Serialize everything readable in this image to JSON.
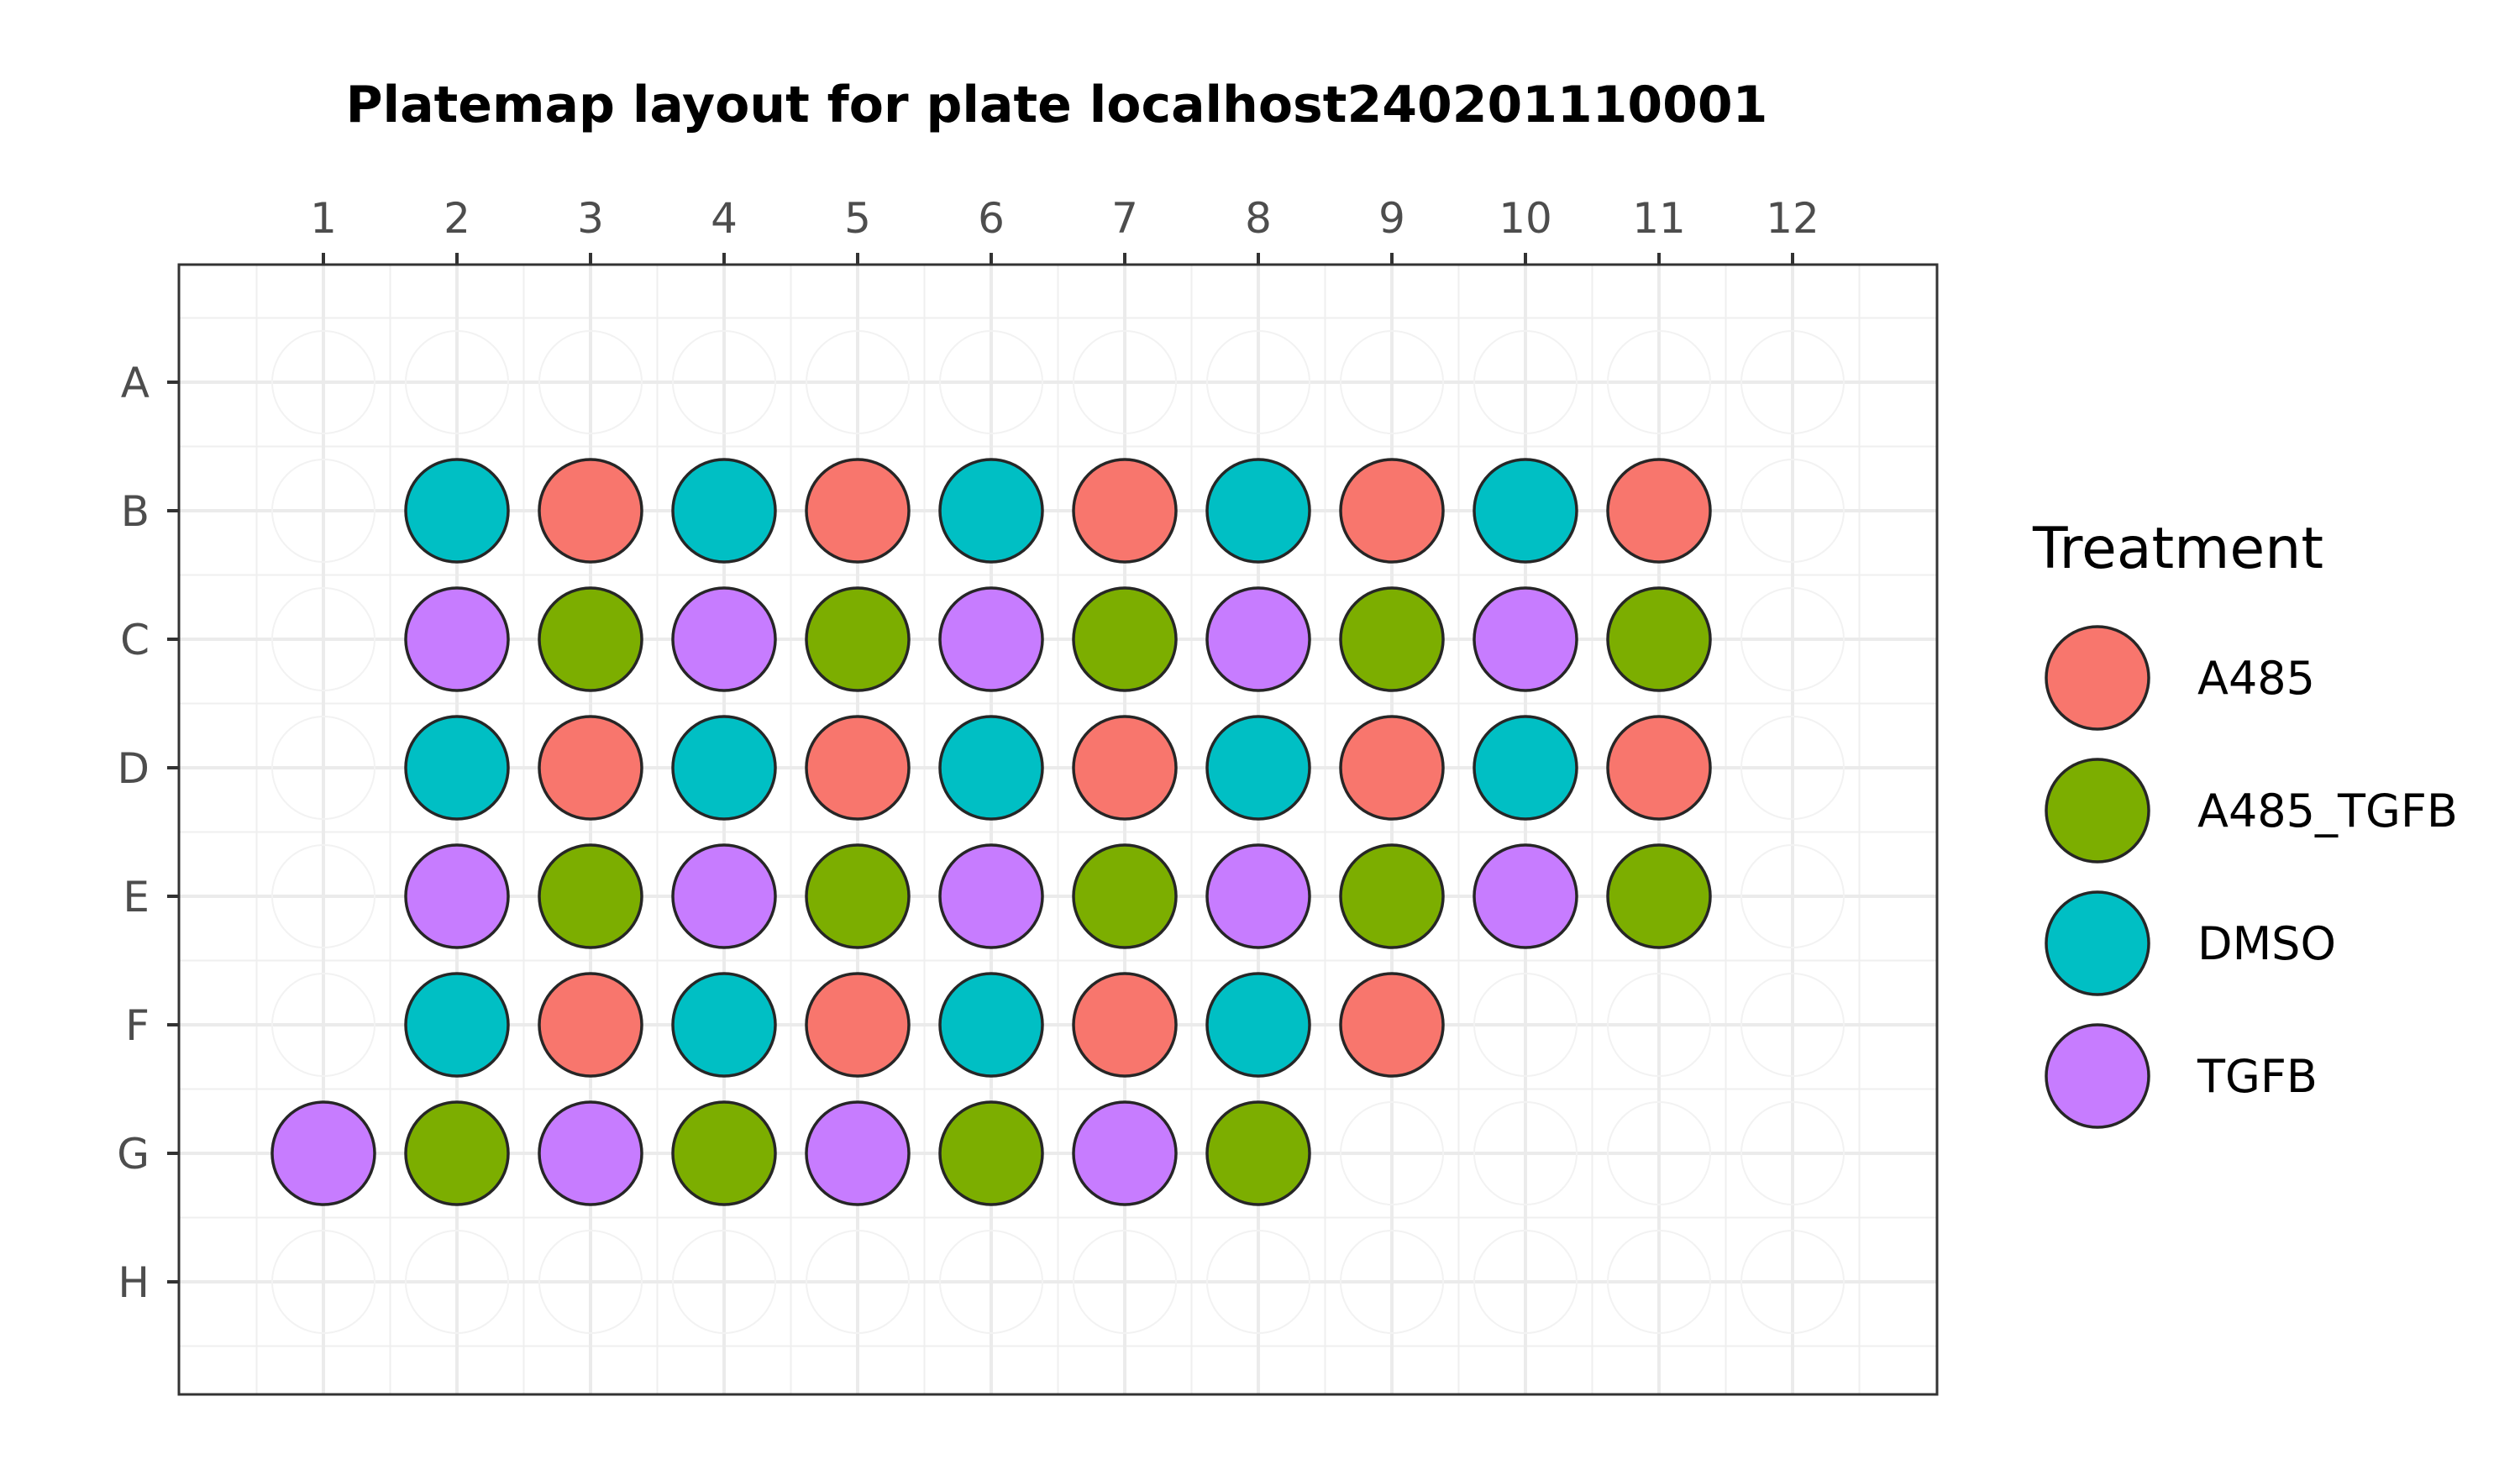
{
  "chart_data": {
    "type": "scatter",
    "title": "Platemap layout for plate localhost240201110001",
    "xlabel": "",
    "ylabel": "",
    "x_ticks": [
      "1",
      "2",
      "3",
      "4",
      "5",
      "6",
      "7",
      "8",
      "9",
      "10",
      "11",
      "12"
    ],
    "y_ticks": [
      "A",
      "B",
      "C",
      "D",
      "E",
      "F",
      "G",
      "H"
    ],
    "x_axis_position": "top",
    "grid": true,
    "legend": {
      "title": "Treatment",
      "position": "right",
      "entries": [
        {
          "name": "A485",
          "color": "#F8766D"
        },
        {
          "name": "A485_TGFB",
          "color": "#7CAE00"
        },
        {
          "name": "DMSO",
          "color": "#00BFC4"
        },
        {
          "name": "TGFB",
          "color": "#C77CFF"
        }
      ]
    },
    "series": [
      {
        "name": "A485",
        "color": "#F8766D",
        "wells": [
          [
            "B",
            3
          ],
          [
            "B",
            5
          ],
          [
            "B",
            7
          ],
          [
            "B",
            9
          ],
          [
            "B",
            11
          ],
          [
            "D",
            3
          ],
          [
            "D",
            5
          ],
          [
            "D",
            7
          ],
          [
            "D",
            9
          ],
          [
            "D",
            11
          ],
          [
            "F",
            3
          ],
          [
            "F",
            5
          ],
          [
            "F",
            7
          ],
          [
            "F",
            9
          ]
        ]
      },
      {
        "name": "A485_TGFB",
        "color": "#7CAE00",
        "wells": [
          [
            "C",
            3
          ],
          [
            "C",
            5
          ],
          [
            "C",
            7
          ],
          [
            "C",
            9
          ],
          [
            "C",
            11
          ],
          [
            "E",
            3
          ],
          [
            "E",
            5
          ],
          [
            "E",
            7
          ],
          [
            "E",
            9
          ],
          [
            "E",
            11
          ],
          [
            "G",
            2
          ],
          [
            "G",
            4
          ],
          [
            "G",
            6
          ],
          [
            "G",
            8
          ]
        ]
      },
      {
        "name": "DMSO",
        "color": "#00BFC4",
        "wells": [
          [
            "B",
            2
          ],
          [
            "B",
            4
          ],
          [
            "B",
            6
          ],
          [
            "B",
            8
          ],
          [
            "B",
            10
          ],
          [
            "D",
            2
          ],
          [
            "D",
            4
          ],
          [
            "D",
            6
          ],
          [
            "D",
            8
          ],
          [
            "D",
            10
          ],
          [
            "F",
            2
          ],
          [
            "F",
            4
          ],
          [
            "F",
            6
          ],
          [
            "F",
            8
          ]
        ]
      },
      {
        "name": "TGFB",
        "color": "#C77CFF",
        "wells": [
          [
            "C",
            2
          ],
          [
            "C",
            4
          ],
          [
            "C",
            6
          ],
          [
            "C",
            8
          ],
          [
            "C",
            10
          ],
          [
            "E",
            2
          ],
          [
            "E",
            4
          ],
          [
            "E",
            6
          ],
          [
            "E",
            8
          ],
          [
            "E",
            10
          ],
          [
            "G",
            1
          ],
          [
            "G",
            3
          ],
          [
            "G",
            5
          ],
          [
            "G",
            7
          ]
        ]
      }
    ]
  }
}
